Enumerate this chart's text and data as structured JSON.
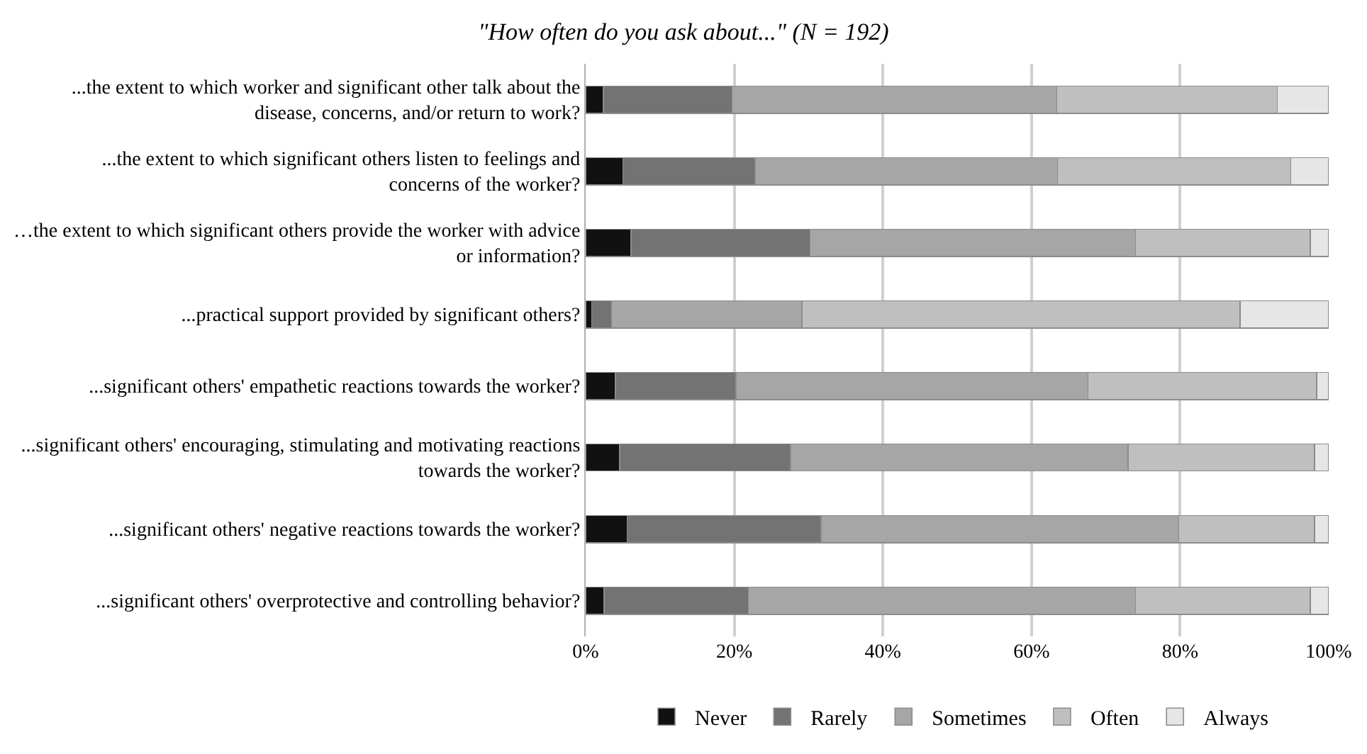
{
  "chart_data": {
    "type": "bar",
    "orientation": "horizontal",
    "stacked": true,
    "title": "\"How often do you ask about...\" (N = 192)",
    "categories": [
      "...the extent to which worker and significant other talk about the disease, concerns, and/or return to work?",
      "...the extent to which significant others listen to feelings and concerns of the worker?",
      "…the extent to which significant others provide the worker with advice or information?",
      "...practical support provided by significant others?",
      "...significant others' empathetic reactions towards the worker?",
      "...significant others' encouraging, stimulating and motivating reactions towards the worker?",
      "...significant others' negative reactions towards the worker?",
      "...significant others' overprotective and controlling behavior?"
    ],
    "series": [
      {
        "name": "Never",
        "color": "#111111",
        "values": [
          2.4,
          5.0,
          6.1,
          0.8,
          4.0,
          4.6,
          5.6,
          2.5
        ]
      },
      {
        "name": "Rarely",
        "color": "#737373",
        "values": [
          17.3,
          17.8,
          24.1,
          2.7,
          16.2,
          23.0,
          26.1,
          19.4
        ]
      },
      {
        "name": "Sometimes",
        "color": "#a6a6a6",
        "values": [
          43.7,
          40.7,
          43.8,
          25.6,
          47.4,
          45.4,
          48.1,
          52.1
        ]
      },
      {
        "name": "Often",
        "color": "#bfbfbf",
        "values": [
          29.7,
          31.4,
          23.5,
          59.0,
          30.8,
          25.1,
          18.3,
          23.5
        ]
      },
      {
        "name": "Always",
        "color": "#e6e6e6",
        "values": [
          6.9,
          5.1,
          2.5,
          11.9,
          1.6,
          1.9,
          1.9,
          2.5
        ]
      }
    ],
    "xlim": [
      0,
      100
    ],
    "xticks": [
      {
        "value": 0,
        "label": "0%"
      },
      {
        "value": 20,
        "label": "20%"
      },
      {
        "value": 40,
        "label": "40%"
      },
      {
        "value": 60,
        "label": "60%"
      },
      {
        "value": 80,
        "label": "80%"
      },
      {
        "value": 100,
        "label": "100%"
      }
    ],
    "grid": "x",
    "legend": "bottom"
  }
}
